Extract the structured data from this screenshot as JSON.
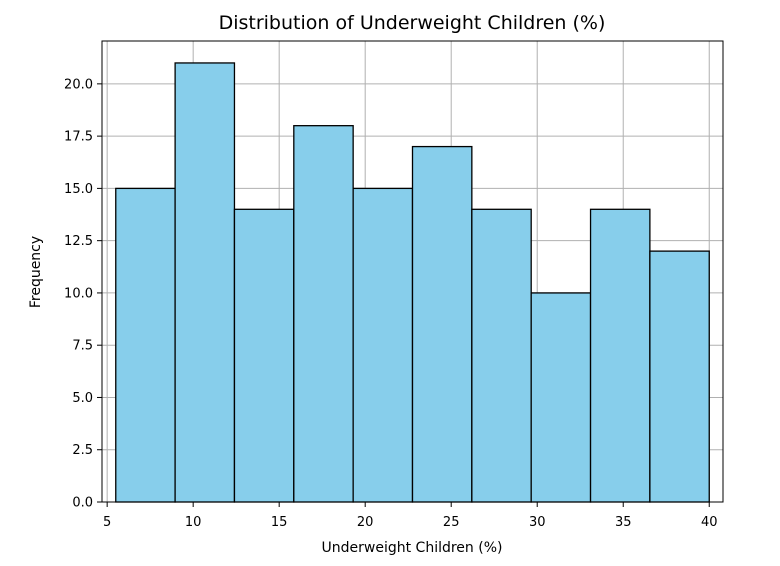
{
  "chart_data": {
    "type": "bar",
    "title": "Distribution of Underweight Children (%)",
    "xlabel": "Underweight Children (%)",
    "ylabel": "Frequency",
    "bin_edges": [
      5.5,
      8.95,
      12.4,
      15.85,
      19.3,
      22.75,
      26.2,
      29.65,
      33.1,
      36.55,
      40.0
    ],
    "values": [
      15,
      21,
      14,
      18,
      15,
      17,
      14,
      10,
      14,
      12
    ],
    "xlim": [
      4.7,
      40.8
    ],
    "ylim": [
      0,
      22.05
    ],
    "x_ticks": [
      5,
      10,
      15,
      20,
      25,
      30,
      35,
      40
    ],
    "y_ticks": [
      0,
      2.5,
      5,
      7.5,
      10,
      12.5,
      15,
      17.5,
      20
    ],
    "x_tick_labels": [
      "5",
      "10",
      "15",
      "20",
      "25",
      "30",
      "35",
      "40"
    ],
    "y_tick_labels": [
      "0.0",
      "2.5",
      "5.0",
      "7.5",
      "10.0",
      "12.5",
      "15.0",
      "17.5",
      "20.0"
    ],
    "grid": true,
    "colors": {
      "bar_fill": "#87ceeb",
      "bar_edge": "#000000",
      "grid": "#b0b0b0"
    }
  }
}
